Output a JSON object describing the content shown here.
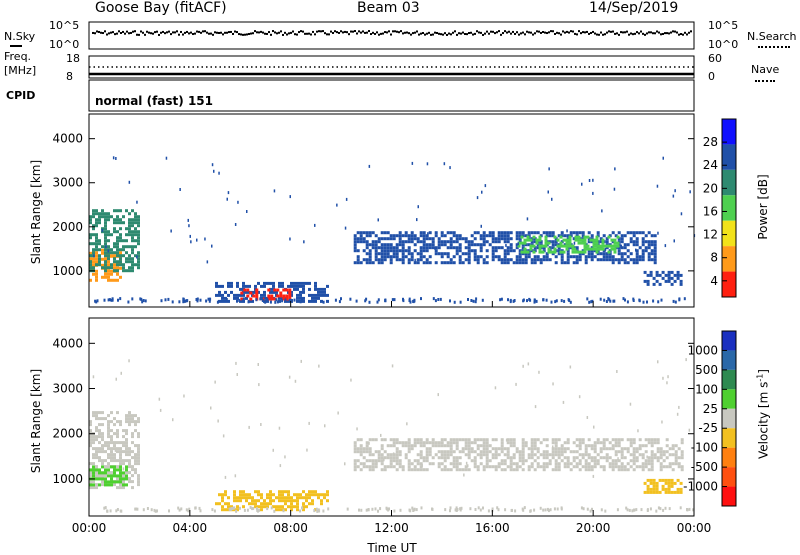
{
  "header": {
    "station": "Goose Bay (fitACF)",
    "beam": "Beam 03",
    "date": "14/Sep/2019"
  },
  "strip1": {
    "left_label": "N.Sky",
    "right_label": "N.Search",
    "left_ticks": [
      "10^5",
      "10^0"
    ],
    "right_ticks": [
      "10^5",
      "10^0"
    ]
  },
  "strip2": {
    "left_label_1": "Freq.",
    "left_label_2": "[MHz]",
    "left_ticks": [
      "18",
      "8"
    ],
    "right_label": "Nave",
    "right_ticks": [
      "60",
      "0"
    ]
  },
  "cpid": {
    "label": "CPID",
    "value": "normal (fast) 151"
  },
  "chart_data": [
    {
      "type": "heatmap",
      "name": "power-panel",
      "ylabel": "Slant Range [km]",
      "ylim": [
        180,
        4560
      ],
      "yticks": [
        "1000",
        "2000",
        "3000",
        "4000"
      ],
      "colorbar": {
        "label": "Power [dB]",
        "ticks": [
          "4",
          "8",
          "12",
          "16",
          "20",
          "24",
          "28"
        ],
        "colors": [
          "#1010ff",
          "#2050a8",
          "#2e8a70",
          "#4fd050",
          "#f2e21a",
          "#ff9a1a",
          "#ff2010"
        ]
      },
      "echo_regions": [
        {
          "t0": 0.0,
          "t1": 1.3,
          "r0": 800,
          "r1": 1500,
          "color": "#ff9a1a"
        },
        {
          "t0": 0.0,
          "t1": 2.0,
          "r0": 1000,
          "r1": 2400,
          "color": "#2e8a70"
        },
        {
          "t0": 5.0,
          "t1": 9.5,
          "r0": 300,
          "r1": 750,
          "color": "#2050a8"
        },
        {
          "t0": 6.0,
          "t1": 8.0,
          "r0": 350,
          "r1": 600,
          "color": "#ff2010"
        },
        {
          "t0": 10.5,
          "t1": 22.5,
          "r0": 1200,
          "r1": 1900,
          "color": "#2050a8"
        },
        {
          "t0": 17.0,
          "t1": 21.0,
          "r0": 1400,
          "r1": 1800,
          "color": "#4fd050"
        },
        {
          "t0": 22.0,
          "t1": 23.5,
          "r0": 700,
          "r1": 1000,
          "color": "#2050a8"
        }
      ]
    },
    {
      "type": "heatmap",
      "name": "velocity-panel",
      "xlabel": "Time UT",
      "ylabel": "Slant Range [km]",
      "ylim": [
        180,
        4560
      ],
      "xlim": [
        0,
        24
      ],
      "yticks": [
        "1000",
        "2000",
        "3000",
        "4000"
      ],
      "xticks": [
        "00:00",
        "04:00",
        "08:00",
        "12:00",
        "16:00",
        "20:00",
        "00:00"
      ],
      "colorbar": {
        "label": "Velocity [m s",
        "label_sup": "-1",
        "label_end": "]",
        "ticks": [
          "1000",
          "500",
          "100",
          "25",
          "-25",
          "-100",
          "-500",
          "-1000"
        ],
        "colors": [
          "#1a30c0",
          "#2a68a8",
          "#2e8a50",
          "#4fd030",
          "#c8c8c0",
          "#f2c020",
          "#ff8010",
          "#ff5010",
          "#ff1010"
        ]
      },
      "echo_regions": [
        {
          "t0": 0.0,
          "t1": 2.0,
          "r0": 800,
          "r1": 2500,
          "color": "#c8c8c0"
        },
        {
          "t0": 0.0,
          "t1": 1.5,
          "r0": 900,
          "r1": 1300,
          "color": "#4fd030"
        },
        {
          "t0": 5.0,
          "t1": 9.5,
          "r0": 300,
          "r1": 750,
          "color": "#f2c020"
        },
        {
          "t0": 10.5,
          "t1": 23.5,
          "r0": 1200,
          "r1": 1900,
          "color": "#c8c8c0"
        },
        {
          "t0": 22.0,
          "t1": 23.5,
          "r0": 700,
          "r1": 1000,
          "color": "#f2c020"
        }
      ]
    }
  ]
}
